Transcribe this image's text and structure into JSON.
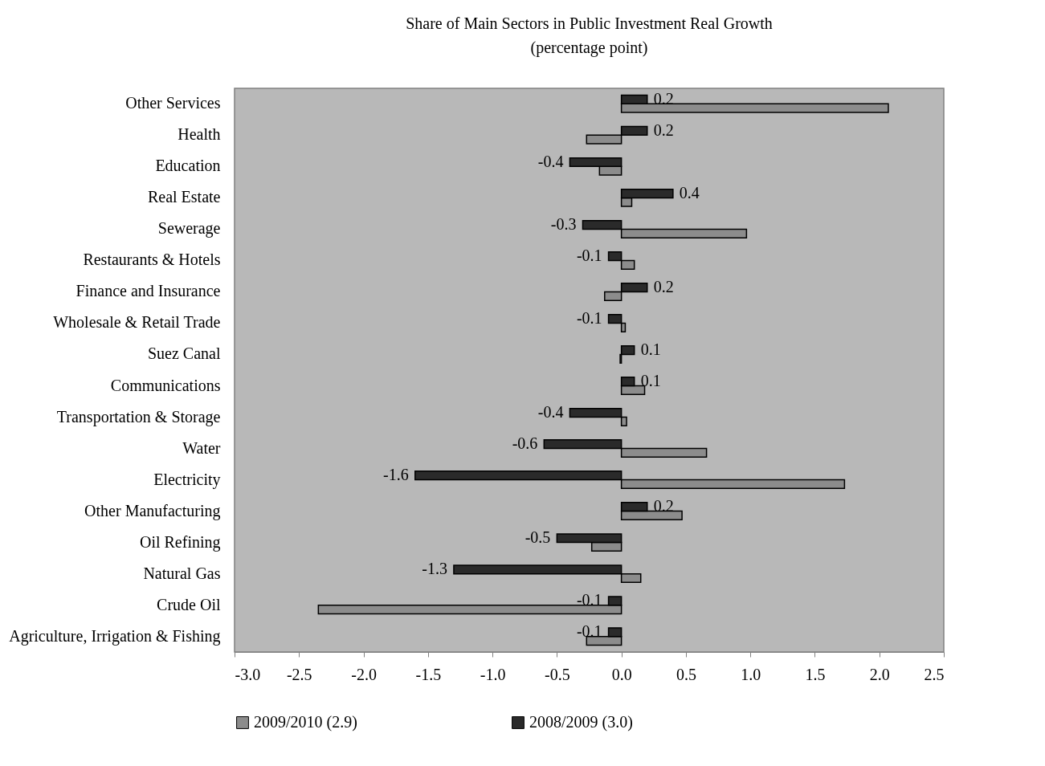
{
  "chart_data": {
    "type": "bar",
    "orientation": "horizontal",
    "title": "Share of Main Sectors in Public Investment Real Growth",
    "subtitle": "(percentage point)",
    "categories": [
      "Other Services",
      "Health",
      "Education",
      "Real Estate",
      "Sewerage",
      "Restaurants & Hotels",
      "Finance and Insurance",
      "Wholesale & Retail Trade",
      "Suez Canal",
      "Communications",
      "Transportation & Storage",
      "Water",
      "Electricity",
      "Other Manufacturing",
      "Oil Refining",
      "Natural Gas",
      "Crude Oil",
      "Agriculture, Irrigation & Fishing"
    ],
    "series": [
      {
        "name": "2009/2010 (2.9)",
        "color": "#8c8c8c",
        "values": [
          2.07,
          -0.27,
          -0.17,
          0.08,
          0.97,
          0.1,
          -0.13,
          0.03,
          -0.01,
          0.18,
          0.04,
          0.66,
          1.73,
          0.47,
          -0.23,
          0.15,
          -2.35,
          -0.27
        ]
      },
      {
        "name": "2008/2009 (3.0)",
        "color": "#2a2a2a",
        "values": [
          0.2,
          0.2,
          -0.4,
          0.4,
          -0.3,
          -0.1,
          0.2,
          -0.1,
          0.1,
          0.1,
          -0.4,
          -0.6,
          -1.6,
          0.2,
          -0.5,
          -1.3,
          -0.1,
          -0.1
        ],
        "value_labels": [
          "0.2",
          "0.2",
          "-0.4",
          "0.4",
          "-0.3",
          "-0.1",
          "0.2",
          "-0.1",
          "0.1",
          "0.1",
          "-0.4",
          "-0.6",
          "-1.6",
          "0.2",
          "-0.5",
          "-1.3",
          "-0.1",
          "-0.1"
        ]
      }
    ],
    "xlim": [
      -3.0,
      2.5
    ],
    "xticks": [
      {
        "value": -3.0,
        "label": "-3.0"
      },
      {
        "value": -2.5,
        "label": "-2.5"
      },
      {
        "value": -2.0,
        "label": "-2.0"
      },
      {
        "value": -1.5,
        "label": "-1.5"
      },
      {
        "value": -1.0,
        "label": "-1.0"
      },
      {
        "value": -0.5,
        "label": "-0.5"
      },
      {
        "value": 0.0,
        "label": "0.0"
      },
      {
        "value": 0.5,
        "label": "0.5"
      },
      {
        "value": 1.0,
        "label": "1.0"
      },
      {
        "value": 1.5,
        "label": "1.5"
      },
      {
        "value": 2.0,
        "label": "2.0"
      },
      {
        "value": 2.5,
        "label": "2.5"
      }
    ],
    "grid": false,
    "legend": "bottom"
  }
}
